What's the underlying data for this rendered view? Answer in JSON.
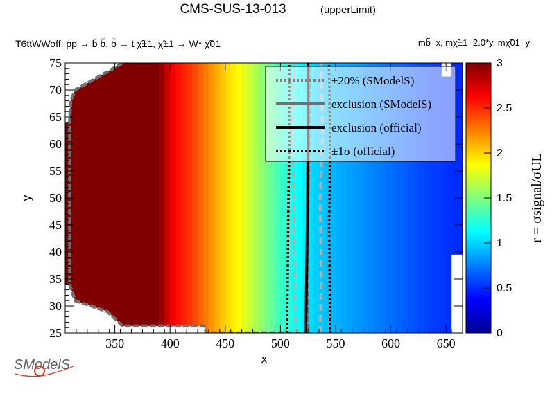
{
  "chart_data": {
    "type": "heatmap",
    "title": "CMS-SUS-13-013",
    "subtitle": "(upperLimit)",
    "process_label": "T6ttWWoff: pp  → b̃ b̃, b̃  → t χ̃±1, χ̃±1 → W* χ̃01",
    "mass_label": "mb̃=x, mχ̃±1=2.0*y, mχ̃01=y",
    "xlabel": "x",
    "ylabel": "y",
    "zlabel": "r = σsignal/σUL",
    "xlim": [
      305,
      665
    ],
    "ylim": [
      25,
      75
    ],
    "zlim": [
      0,
      3
    ],
    "x_ticks": [
      "350",
      "400",
      "450",
      "500",
      "550",
      "600",
      "650"
    ],
    "y_ticks": [
      "25",
      "30",
      "35",
      "40",
      "45",
      "50",
      "55",
      "60",
      "65",
      "70",
      "75"
    ],
    "z_ticks": [
      "0",
      "0.5",
      "1",
      "1.5",
      "2",
      "2.5",
      "3"
    ],
    "grid": false,
    "r_profile_x": [
      390,
      400,
      410,
      420,
      430,
      440,
      450,
      460,
      470,
      480,
      490,
      500,
      510,
      520,
      530,
      540,
      550,
      560,
      570,
      580,
      590,
      600,
      610,
      620,
      630,
      640,
      650,
      660
    ],
    "r_profile_values": [
      3.0,
      2.7,
      2.55,
      2.45,
      2.3,
      2.15,
      2.0,
      1.9,
      1.75,
      1.6,
      1.45,
      1.3,
      1.2,
      1.1,
      1.0,
      0.95,
      0.9,
      0.86,
      0.82,
      0.78,
      0.74,
      0.7,
      0.66,
      0.62,
      0.58,
      0.55,
      0.52,
      0.5
    ],
    "legend": {
      "placement": "top-right",
      "entries": [
        "±20% (SModelS)",
        "exclusion (SModelS)",
        "exclusion (official)",
        "±1σ (official)"
      ]
    },
    "series": [
      {
        "name": "exclusion (SModelS)",
        "points": [
          [
            357,
            75
          ],
          [
            340,
            73
          ],
          [
            314,
            70
          ],
          [
            310,
            68
          ],
          [
            309,
            64
          ],
          [
            309,
            34
          ],
          [
            314,
            31
          ],
          [
            343,
            29
          ],
          [
            357,
            26.3
          ],
          [
            431,
            26.3
          ],
          [
            433,
            25
          ],
          [
            525,
            25
          ],
          [
            524,
            35
          ],
          [
            525,
            50
          ],
          [
            526,
            65
          ],
          [
            526,
            75
          ]
        ]
      },
      {
        "name": "±20% (SModelS) upper",
        "points": [
          [
            514,
            25
          ],
          [
            513,
            35
          ],
          [
            512,
            48
          ],
          [
            511,
            62
          ],
          [
            512,
            75
          ]
        ]
      },
      {
        "name": "±20% (SModelS) lower",
        "points": [
          [
            536,
            25
          ],
          [
            537,
            35
          ],
          [
            536,
            50
          ],
          [
            538,
            62
          ],
          [
            537,
            75
          ]
        ]
      },
      {
        "name": "exclusion (official)",
        "points": [
          [
            523,
            25
          ],
          [
            524,
            40
          ],
          [
            525,
            60
          ],
          [
            525,
            75
          ]
        ]
      },
      {
        "name": "±1σ (official) lower",
        "points": [
          [
            506,
            25
          ],
          [
            507,
            45
          ],
          [
            508,
            60
          ],
          [
            508,
            75
          ]
        ]
      },
      {
        "name": "±1σ (official) upper",
        "points": [
          [
            545,
            25
          ],
          [
            544,
            45
          ],
          [
            545,
            60
          ],
          [
            544,
            75
          ]
        ]
      }
    ],
    "no_data_regions": [
      {
        "name": "top-left corner",
        "points": [
          [
            305,
            75
          ],
          [
            357,
            75
          ],
          [
            340,
            73
          ],
          [
            314,
            70
          ],
          [
            310,
            68
          ],
          [
            309,
            64
          ],
          [
            305,
            64
          ]
        ]
      },
      {
        "name": "bottom-left corner",
        "points": [
          [
            305,
            34
          ],
          [
            309,
            34
          ],
          [
            314,
            31
          ],
          [
            343,
            29
          ],
          [
            357,
            26.3
          ],
          [
            431,
            26.3
          ],
          [
            433,
            25
          ],
          [
            305,
            25
          ]
        ]
      },
      {
        "name": "bottom-right step",
        "points": [
          [
            655,
            25
          ],
          [
            655,
            39.5
          ],
          [
            665,
            39.5
          ],
          [
            665,
            25
          ]
        ]
      },
      {
        "name": "top-right corner",
        "points": [
          [
            646,
            75
          ],
          [
            646,
            72.5
          ],
          [
            655,
            72.5
          ],
          [
            655,
            75
          ]
        ]
      }
    ]
  },
  "logo": {
    "text": "SModelS"
  }
}
